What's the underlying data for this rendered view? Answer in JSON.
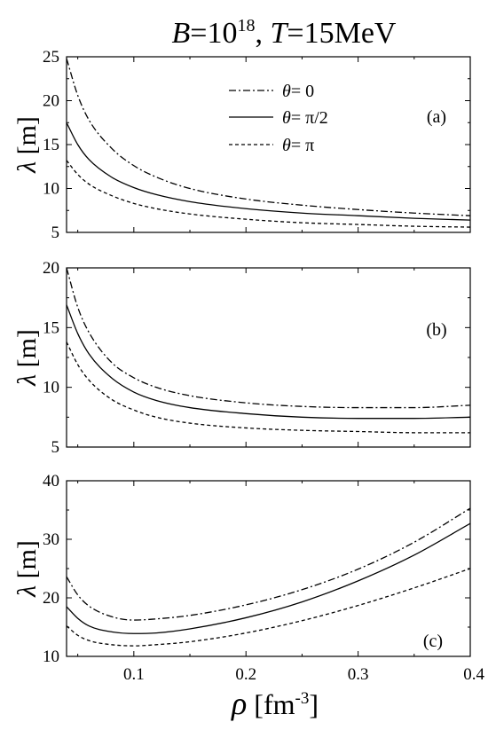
{
  "figure": {
    "title_B": "B",
    "title_eq1": "=10",
    "title_exp": "18",
    "title_sep": ", ",
    "title_T": "T",
    "title_eq2": "=15MeV",
    "xlabel_sym": "ρ",
    "xlabel_unit_open": " [fm",
    "xlabel_unit_exp": "-3",
    "xlabel_unit_close": "]",
    "ylabel_sym": "λ",
    "ylabel_unit": " [m]"
  },
  "legend": [
    {
      "sym": "θ",
      "text": "= 0",
      "style": "dashdot"
    },
    {
      "sym": "θ",
      "text": "= π/2",
      "style": "solid"
    },
    {
      "sym": "θ",
      "text": "= π",
      "style": "dashed"
    }
  ],
  "chart_data": [
    {
      "type": "line",
      "panel_label": "(a)",
      "xlabel": "",
      "ylabel": "λ [m]",
      "xlim": [
        0.04,
        0.4
      ],
      "ylim": [
        5,
        25
      ],
      "yticks": [
        "5",
        "10",
        "15",
        "20",
        "25"
      ],
      "xtick_labels": [],
      "x": [
        0.04,
        0.05,
        0.06,
        0.08,
        0.1,
        0.12,
        0.15,
        0.2,
        0.25,
        0.3,
        0.35,
        0.4
      ],
      "series": [
        {
          "name": "θ = 0",
          "style": "dashdot",
          "values": [
            24.8,
            20.6,
            17.8,
            14.6,
            12.6,
            11.3,
            10.0,
            8.8,
            8.1,
            7.6,
            7.2,
            6.9
          ]
        },
        {
          "name": "θ = π/2",
          "style": "solid",
          "values": [
            17.5,
            15.0,
            13.3,
            11.3,
            10.1,
            9.3,
            8.5,
            7.7,
            7.2,
            6.9,
            6.6,
            6.4
          ]
        },
        {
          "name": "θ = π",
          "style": "dashed",
          "values": [
            13.2,
            11.6,
            10.5,
            9.2,
            8.3,
            7.7,
            7.1,
            6.5,
            6.1,
            5.9,
            5.7,
            5.6
          ]
        }
      ]
    },
    {
      "type": "line",
      "panel_label": "(b)",
      "xlabel": "",
      "ylabel": "λ [m]",
      "xlim": [
        0.04,
        0.4
      ],
      "ylim": [
        5,
        20
      ],
      "yticks": [
        "5",
        "10",
        "15",
        "20"
      ],
      "xtick_labels": [],
      "x": [
        0.04,
        0.05,
        0.06,
        0.08,
        0.1,
        0.12,
        0.15,
        0.2,
        0.25,
        0.3,
        0.35,
        0.4
      ],
      "series": [
        {
          "name": "θ = 0",
          "style": "dashdot",
          "values": [
            20.0,
            16.7,
            14.6,
            12.1,
            10.8,
            10.0,
            9.3,
            8.7,
            8.4,
            8.3,
            8.3,
            8.5
          ]
        },
        {
          "name": "θ = π/2",
          "style": "solid",
          "values": [
            16.9,
            14.5,
            12.8,
            10.8,
            9.6,
            8.9,
            8.3,
            7.8,
            7.5,
            7.4,
            7.4,
            7.5
          ]
        },
        {
          "name": "θ = π",
          "style": "dashed",
          "values": [
            13.8,
            11.9,
            10.6,
            9.0,
            8.1,
            7.5,
            7.0,
            6.6,
            6.4,
            6.3,
            6.2,
            6.2
          ]
        }
      ]
    },
    {
      "type": "line",
      "panel_label": "(c)",
      "xlabel": "ρ [fm-3]",
      "ylabel": "λ [m]",
      "xlim": [
        0.04,
        0.4
      ],
      "ylim": [
        10,
        40
      ],
      "yticks": [
        "10",
        "20",
        "30",
        "40"
      ],
      "xtick_labels": [
        "0.1",
        "0.2",
        "0.3",
        "0.4"
      ],
      "x": [
        0.04,
        0.05,
        0.06,
        0.08,
        0.1,
        0.12,
        0.15,
        0.2,
        0.25,
        0.3,
        0.35,
        0.4
      ],
      "series": [
        {
          "name": "θ = 0",
          "style": "dashdot",
          "values": [
            23.6,
            20.5,
            18.6,
            16.8,
            16.2,
            16.4,
            17.0,
            18.8,
            21.4,
            24.9,
            29.5,
            35.3
          ]
        },
        {
          "name": "θ = π/2",
          "style": "solid",
          "values": [
            18.5,
            16.5,
            15.2,
            14.2,
            13.9,
            14.0,
            14.7,
            16.6,
            19.3,
            22.9,
            27.3,
            32.7
          ]
        },
        {
          "name": "θ = π",
          "style": "dashed",
          "values": [
            15.2,
            13.6,
            12.7,
            12.0,
            11.8,
            12.0,
            12.5,
            14.0,
            16.1,
            18.7,
            21.7,
            25.0
          ]
        }
      ]
    }
  ]
}
